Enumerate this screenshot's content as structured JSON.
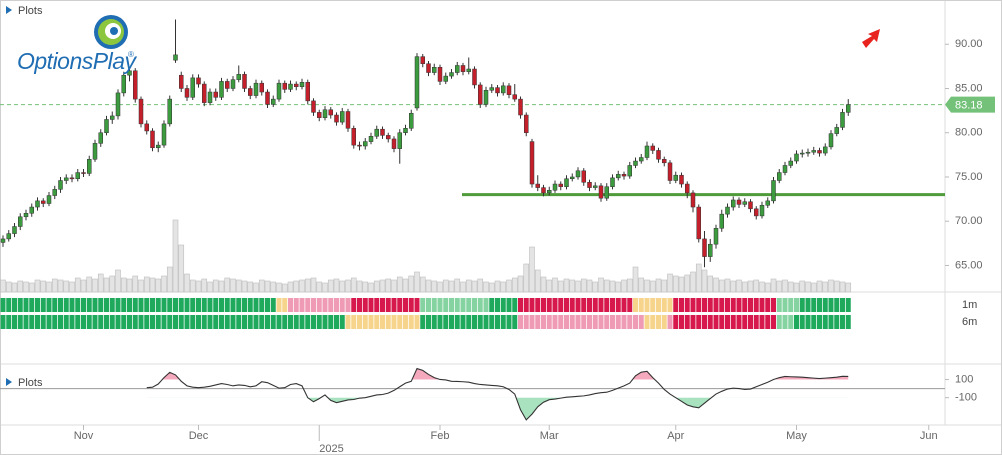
{
  "chart_data": {
    "type": "candlestick",
    "legend_label": "Plots",
    "logo": "OptionsPlay",
    "logo_mark": "®",
    "categories": [
      null,
      null,
      null,
      null,
      null,
      null,
      null,
      null,
      null,
      null,
      null,
      null,
      null,
      null,
      "Nov",
      null,
      null,
      null,
      null,
      null,
      null,
      null,
      null,
      null,
      null,
      null,
      null,
      null,
      null,
      null,
      null,
      null,
      null,
      null,
      "Dec",
      null,
      null,
      null,
      null,
      null,
      null,
      null,
      null,
      null,
      null,
      null,
      null,
      null,
      null,
      null,
      null,
      null,
      null,
      null,
      null,
      "2025",
      null,
      null,
      null,
      null,
      null,
      null,
      null,
      null,
      null,
      null,
      null,
      null,
      null,
      null,
      null,
      null,
      null,
      null,
      null,
      null,
      "Feb",
      null,
      null,
      null,
      null,
      null,
      null,
      null,
      null,
      null,
      null,
      null,
      null,
      null,
      null,
      null,
      null,
      null,
      null,
      "Mar",
      null,
      null,
      null,
      null,
      null,
      null,
      null,
      null,
      null,
      null,
      null,
      null,
      null,
      null,
      null,
      null,
      null,
      null,
      null,
      null,
      null,
      "Apr",
      null,
      null,
      null,
      null,
      null,
      null,
      null,
      null,
      null,
      null,
      null,
      null,
      null,
      null,
      null,
      null,
      null,
      null,
      null,
      null,
      "May",
      null,
      null,
      null,
      null,
      null,
      null,
      null,
      null,
      null,
      null,
      null,
      null,
      null,
      null,
      null,
      null,
      null,
      null,
      null,
      null,
      null,
      null,
      "Jun"
    ],
    "candles": [
      [
        67.6,
        68.4,
        67.1,
        68.0
      ],
      [
        68.0,
        69.0,
        67.7,
        68.6
      ],
      [
        68.6,
        69.8,
        68.2,
        69.4
      ],
      [
        69.4,
        70.9,
        69.0,
        70.5
      ],
      [
        70.5,
        71.3,
        70.1,
        70.9
      ],
      [
        70.9,
        72.0,
        70.5,
        71.6
      ],
      [
        71.6,
        72.7,
        71.2,
        72.3
      ],
      [
        72.3,
        72.6,
        71.6,
        72.0
      ],
      [
        72.0,
        73.3,
        71.7,
        72.9
      ],
      [
        72.9,
        74.0,
        72.5,
        73.6
      ],
      [
        73.6,
        75.0,
        73.2,
        74.6
      ],
      [
        74.6,
        75.3,
        74.2,
        74.9
      ],
      [
        74.9,
        75.3,
        74.4,
        74.8
      ],
      [
        74.8,
        75.9,
        74.5,
        75.5
      ],
      [
        75.5,
        75.9,
        75.0,
        75.4
      ],
      [
        75.4,
        77.4,
        75.1,
        77.0
      ],
      [
        77.0,
        79.2,
        76.7,
        78.8
      ],
      [
        78.8,
        80.4,
        78.4,
        80.0
      ],
      [
        80.0,
        81.9,
        79.7,
        81.5
      ],
      [
        81.5,
        82.4,
        81.0,
        81.9
      ],
      [
        81.9,
        84.9,
        81.5,
        84.5
      ],
      [
        84.5,
        86.9,
        84.1,
        86.5
      ],
      [
        86.5,
        87.4,
        85.8,
        87.0
      ],
      [
        87.0,
        87.3,
        83.4,
        83.8
      ],
      [
        83.8,
        84.1,
        80.6,
        81.0
      ],
      [
        81.0,
        81.4,
        79.8,
        80.2
      ],
      [
        80.2,
        80.5,
        77.9,
        78.3
      ],
      [
        78.3,
        79.0,
        77.8,
        78.6
      ],
      [
        78.6,
        81.4,
        78.3,
        81.0
      ],
      [
        81.0,
        84.2,
        80.7,
        83.8
      ],
      [
        88.2,
        92.8,
        87.9,
        88.8
      ],
      [
        86.5,
        86.9,
        84.6,
        85.0
      ],
      [
        85.0,
        85.4,
        83.6,
        84.0
      ],
      [
        84.0,
        86.6,
        83.7,
        86.2
      ],
      [
        86.2,
        86.6,
        85.1,
        85.5
      ],
      [
        85.5,
        85.8,
        83.0,
        83.4
      ],
      [
        83.4,
        85.0,
        83.1,
        84.6
      ],
      [
        84.6,
        85.0,
        83.6,
        84.0
      ],
      [
        84.0,
        86.2,
        83.7,
        85.8
      ],
      [
        85.8,
        86.1,
        84.6,
        85.0
      ],
      [
        85.0,
        86.4,
        84.7,
        86.0
      ],
      [
        86.0,
        87.6,
        85.7,
        86.6
      ],
      [
        86.6,
        86.9,
        84.6,
        85.0
      ],
      [
        85.0,
        85.3,
        83.8,
        84.2
      ],
      [
        84.2,
        86.0,
        83.9,
        85.6
      ],
      [
        85.6,
        85.9,
        84.2,
        84.6
      ],
      [
        84.6,
        84.9,
        82.8,
        83.2
      ],
      [
        83.2,
        84.2,
        82.9,
        83.8
      ],
      [
        83.8,
        86.0,
        83.5,
        85.6
      ],
      [
        85.6,
        85.9,
        84.5,
        84.9
      ],
      [
        84.9,
        85.9,
        84.6,
        85.5
      ],
      [
        85.5,
        85.8,
        84.8,
        85.2
      ],
      [
        85.2,
        86.1,
        84.9,
        85.7
      ],
      [
        85.7,
        86.0,
        83.2,
        83.6
      ],
      [
        83.6,
        83.9,
        81.9,
        82.3
      ],
      [
        82.3,
        82.6,
        81.3,
        81.7
      ],
      [
        81.7,
        83.0,
        81.4,
        82.6
      ],
      [
        82.6,
        82.9,
        81.6,
        82.0
      ],
      [
        82.0,
        82.3,
        80.8,
        81.2
      ],
      [
        81.2,
        82.8,
        80.9,
        82.4
      ],
      [
        82.4,
        82.7,
        80.1,
        80.5
      ],
      [
        80.5,
        80.8,
        78.2,
        78.6
      ],
      [
        78.6,
        79.0,
        78.0,
        78.5
      ],
      [
        78.5,
        79.4,
        78.1,
        79.0
      ],
      [
        79.0,
        80.0,
        78.7,
        79.6
      ],
      [
        79.6,
        80.8,
        79.3,
        80.4
      ],
      [
        80.4,
        80.7,
        79.3,
        79.7
      ],
      [
        79.7,
        80.0,
        78.9,
        79.3
      ],
      [
        79.3,
        79.6,
        77.8,
        78.2
      ],
      [
        78.2,
        80.4,
        76.5,
        80.0
      ],
      [
        80.0,
        80.9,
        79.7,
        80.5
      ],
      [
        80.5,
        82.6,
        80.2,
        82.2
      ],
      [
        82.8,
        89.0,
        82.5,
        88.6
      ],
      [
        88.6,
        88.9,
        87.4,
        87.8
      ],
      [
        87.8,
        88.1,
        86.4,
        86.8
      ],
      [
        86.8,
        87.8,
        86.5,
        87.4
      ],
      [
        87.4,
        87.7,
        85.4,
        85.8
      ],
      [
        85.8,
        86.8,
        85.5,
        86.4
      ],
      [
        86.4,
        87.2,
        86.1,
        86.8
      ],
      [
        86.8,
        88.0,
        86.5,
        87.6
      ],
      [
        87.6,
        87.9,
        86.5,
        86.9
      ],
      [
        86.9,
        88.5,
        86.6,
        87.2
      ],
      [
        87.2,
        87.5,
        85.0,
        85.4
      ],
      [
        85.4,
        85.7,
        82.8,
        83.2
      ],
      [
        83.2,
        85.2,
        82.9,
        84.8
      ],
      [
        84.8,
        85.5,
        84.5,
        85.1
      ],
      [
        85.1,
        85.4,
        84.1,
        84.5
      ],
      [
        84.5,
        85.7,
        84.2,
        85.3
      ],
      [
        85.3,
        85.6,
        83.9,
        84.3
      ],
      [
        84.3,
        85.5,
        83.5,
        83.8
      ],
      [
        83.8,
        84.1,
        81.6,
        82.0
      ],
      [
        82.0,
        82.3,
        79.6,
        80.0
      ],
      [
        79.0,
        79.3,
        73.8,
        74.2
      ],
      [
        74.2,
        75.2,
        73.4,
        73.8
      ],
      [
        73.8,
        74.1,
        72.8,
        73.2
      ],
      [
        73.2,
        73.9,
        72.9,
        73.5
      ],
      [
        73.5,
        74.6,
        73.2,
        74.2
      ],
      [
        74.2,
        74.5,
        73.5,
        73.9
      ],
      [
        73.9,
        75.2,
        73.6,
        74.8
      ],
      [
        74.8,
        75.4,
        74.5,
        75.0
      ],
      [
        75.0,
        76.1,
        74.7,
        75.7
      ],
      [
        75.7,
        76.0,
        74.0,
        74.4
      ],
      [
        74.4,
        74.7,
        73.4,
        73.8
      ],
      [
        73.8,
        74.4,
        73.5,
        74.0
      ],
      [
        74.0,
        74.3,
        72.2,
        72.6
      ],
      [
        72.6,
        74.3,
        72.3,
        73.9
      ],
      [
        73.9,
        75.3,
        73.6,
        74.9
      ],
      [
        74.9,
        75.7,
        74.6,
        75.3
      ],
      [
        75.3,
        75.6,
        74.7,
        75.1
      ],
      [
        75.1,
        76.7,
        74.8,
        76.3
      ],
      [
        76.3,
        77.2,
        76.0,
        76.8
      ],
      [
        76.8,
        77.6,
        76.5,
        77.2
      ],
      [
        77.2,
        79.0,
        76.9,
        78.5
      ],
      [
        78.5,
        78.8,
        77.6,
        78.0
      ],
      [
        78.0,
        78.3,
        76.6,
        77.0
      ],
      [
        77.0,
        77.3,
        76.2,
        76.6
      ],
      [
        76.6,
        76.9,
        74.2,
        74.6
      ],
      [
        74.6,
        75.6,
        74.3,
        75.2
      ],
      [
        75.2,
        75.5,
        73.8,
        74.2
      ],
      [
        74.2,
        74.5,
        72.6,
        73.2
      ],
      [
        73.2,
        73.5,
        71.0,
        71.6
      ],
      [
        71.6,
        71.9,
        67.6,
        68.0
      ],
      [
        68.0,
        68.9,
        64.8,
        66.0
      ],
      [
        66.0,
        68.0,
        65.4,
        67.4
      ],
      [
        67.4,
        69.6,
        66.9,
        69.2
      ],
      [
        69.2,
        71.3,
        68.8,
        70.8
      ],
      [
        70.8,
        72.0,
        70.4,
        71.6
      ],
      [
        71.6,
        72.8,
        71.2,
        72.4
      ],
      [
        72.4,
        72.7,
        71.5,
        71.9
      ],
      [
        71.9,
        72.6,
        71.6,
        72.2
      ],
      [
        72.2,
        72.5,
        71.0,
        71.4
      ],
      [
        71.4,
        71.7,
        70.2,
        70.6
      ],
      [
        70.6,
        72.2,
        70.3,
        71.8
      ],
      [
        71.8,
        72.7,
        71.5,
        72.3
      ],
      [
        72.3,
        75.0,
        72.0,
        74.6
      ],
      [
        74.6,
        75.9,
        74.3,
        75.5
      ],
      [
        75.5,
        76.7,
        75.2,
        76.3
      ],
      [
        76.3,
        77.2,
        76.0,
        76.8
      ],
      [
        76.8,
        78.0,
        76.5,
        77.6
      ],
      [
        77.6,
        78.1,
        77.2,
        77.7
      ],
      [
        77.7,
        78.2,
        77.3,
        77.8
      ],
      [
        77.8,
        78.4,
        77.5,
        78.0
      ],
      [
        78.0,
        78.3,
        77.3,
        77.7
      ],
      [
        77.7,
        78.8,
        77.4,
        78.4
      ],
      [
        78.4,
        80.3,
        78.1,
        79.9
      ],
      [
        79.9,
        81.0,
        79.6,
        80.6
      ],
      [
        80.6,
        82.7,
        80.3,
        82.3
      ],
      [
        82.3,
        83.8,
        81.9,
        83.18
      ],
      null,
      null,
      null,
      null,
      null,
      null,
      null,
      null,
      null,
      null,
      null,
      null,
      null,
      null
    ],
    "up_color": "#3c9a3f",
    "down_color": "#c4202c",
    "last_price": 83.18,
    "last_price_color": "#74c17a",
    "support_line": {
      "value": 73,
      "color": "#4f9a3a"
    },
    "ylim": [
      62,
      95
    ],
    "yticks": [
      {
        "value": 65,
        "label": "65.00"
      },
      {
        "value": 70,
        "label": "70.00"
      },
      {
        "value": 75,
        "label": "75.00"
      },
      {
        "value": 80,
        "label": "80.00"
      },
      {
        "value": 85,
        "label": "85.00"
      },
      {
        "value": 90,
        "label": "90.00"
      }
    ],
    "volume": [
      12,
      10,
      9,
      11,
      10,
      9,
      12,
      11,
      10,
      13,
      12,
      11,
      10,
      14,
      12,
      15,
      13,
      18,
      14,
      16,
      22,
      14,
      13,
      16,
      12,
      15,
      14,
      13,
      16,
      25,
      72,
      47,
      18,
      12,
      11,
      13,
      10,
      12,
      11,
      14,
      13,
      12,
      11,
      10,
      9,
      12,
      11,
      10,
      9,
      8,
      10,
      11,
      12,
      13,
      14,
      10,
      9,
      12,
      13,
      11,
      12,
      14,
      11,
      10,
      9,
      11,
      12,
      13,
      12,
      15,
      13,
      16,
      20,
      15,
      12,
      11,
      10,
      12,
      11,
      13,
      10,
      12,
      11,
      13,
      10,
      9,
      11,
      10,
      12,
      14,
      16,
      28,
      45,
      22,
      15,
      12,
      14,
      11,
      13,
      12,
      11,
      13,
      12,
      10,
      14,
      12,
      11,
      10,
      12,
      13,
      25,
      14,
      12,
      11,
      13,
      12,
      18,
      16,
      15,
      17,
      20,
      28,
      22,
      16,
      14,
      12,
      13,
      11,
      12,
      10,
      11,
      12,
      10,
      9,
      13,
      11,
      12,
      10,
      9,
      11,
      10,
      9,
      11,
      10,
      12,
      11,
      10,
      9,
      null,
      null,
      null,
      null,
      null,
      null,
      null,
      null,
      null,
      null,
      null,
      null,
      null,
      null
    ],
    "volume_color": "#e4e4e4",
    "ratings": [
      {
        "label": "1m",
        "codes": "GGGGGGGGGGGGGGGGGGGGGGGGGGGGGGGGGGGGGGGGGGGGGGGGYYPPPPPPPPPPPRRRRRRRRRRRRLLLLLLLLLLLLGGGGGRRRRRRRRRRRRRRRRRRRRYYYYYYYRRRRRRRRRRRRRRRRRRLLLLGGGGGGGGG"
      },
      {
        "label": "6m",
        "codes": "GGGGGGGGGGGGGGGGGGGGGGGGGGGGGGGGGGGGGGGGGGGGGGGGGGGGGGGGGGGGYYYYYYYYYYYYYGGGGGGGGGGGGGGGGGPPPPPPPPPPPPPPPPPPPPPPYYYYPRRRRRRRRRRRRRRRRRRLLLGGGGGGGGGG"
      }
    ],
    "rating_palette": {
      "G": "#1ea95c",
      "L": "#86d3a2",
      "Y": "#f7d48c",
      "P": "#f09bb5",
      "R": "#d6184c"
    },
    "oscillator": [
      null,
      null,
      null,
      null,
      null,
      null,
      null,
      null,
      null,
      null,
      null,
      null,
      null,
      null,
      null,
      null,
      null,
      null,
      null,
      null,
      null,
      null,
      null,
      null,
      null,
      10,
      15,
      50,
      120,
      178,
      150,
      80,
      30,
      15,
      10,
      15,
      25,
      40,
      55,
      45,
      30,
      40,
      35,
      20,
      30,
      75,
      65,
      35,
      5,
      10,
      45,
      55,
      30,
      -100,
      -145,
      -110,
      -70,
      -130,
      -155,
      -140,
      -125,
      -120,
      -105,
      -100,
      -85,
      -70,
      -65,
      -50,
      -20,
      20,
      60,
      80,
      220,
      200,
      155,
      120,
      100,
      95,
      80,
      78,
      75,
      70,
      55,
      45,
      40,
      35,
      30,
      20,
      -10,
      -60,
      -233,
      -344,
      -280,
      -200,
      -150,
      -122,
      -115,
      -105,
      -95,
      -90,
      -85,
      -80,
      -70,
      -55,
      -45,
      -40,
      -20,
      5,
      30,
      60,
      140,
      180,
      189,
      120,
      60,
      -10,
      -60,
      -100,
      -140,
      -180,
      -200,
      -211,
      -160,
      -110,
      -60,
      -30,
      -5,
      5,
      0,
      -10,
      -5,
      20,
      45,
      70,
      100,
      120,
      133,
      130,
      128,
      125,
      120,
      115,
      110,
      115,
      120,
      125,
      135,
      133,
      null,
      null,
      null,
      null,
      null,
      null,
      null,
      null,
      null,
      null,
      null,
      null,
      null,
      null
    ],
    "oscillator_ylim": [
      -400,
      270
    ],
    "oscillator_yticks": [
      100,
      -100
    ],
    "oscillator_color": "#333333",
    "oscillator_high_fill": "#f5a9bd",
    "oscillator_low_fill": "#a8e2bf"
  }
}
